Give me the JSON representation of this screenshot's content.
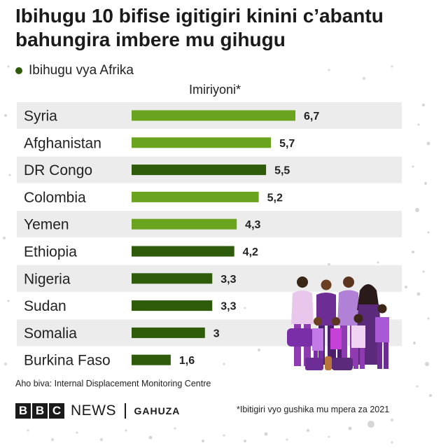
{
  "title": "Ibihugu 10 bifise igitigiri kinini c’abantu bahungira imbere mu gihugu",
  "legend": {
    "label": "Ibihugu vya Afrika",
    "color": "#2e5c0a"
  },
  "unit_label": "Imiriyoni*",
  "colors": {
    "africa": "#2e5c0a",
    "other": "#6aa31d",
    "row_band": "#ececec"
  },
  "chart_data": {
    "type": "bar",
    "orientation": "horizontal",
    "title": "Ibihugu 10 bifise igitigiri kinini c’abantu bahungira imbere mu gihugu",
    "xlabel": "Imiriyoni*",
    "ylabel": "",
    "xlim": [
      0,
      7
    ],
    "categories": [
      "Syria",
      "Afghanistan",
      "DR Congo",
      "Colombia",
      "Yemen",
      "Ethiopia",
      "Nigeria",
      "Sudan",
      "Somalia",
      "Burkina Faso"
    ],
    "values": [
      6.7,
      5.7,
      5.5,
      5.2,
      4.3,
      4.2,
      3.3,
      3.3,
      3,
      1.6
    ],
    "value_labels": [
      "6,7",
      "5,7",
      "5,5",
      "5,2",
      "4,3",
      "4,2",
      "3,3",
      "3,3",
      "3",
      "1,6"
    ],
    "african": [
      false,
      false,
      true,
      false,
      false,
      true,
      true,
      true,
      true,
      true
    ],
    "legend": [
      "Ibihugu vya Afrika"
    ],
    "grid": false
  },
  "source": "Aho biva: Internal Displacement Monitoring Centre",
  "brand": {
    "letters": [
      "B",
      "B",
      "C"
    ],
    "news": "NEWS",
    "service": "GAHUZA"
  },
  "footnote": "*Ibitigiri vyo gushika mu mpera za 2021"
}
